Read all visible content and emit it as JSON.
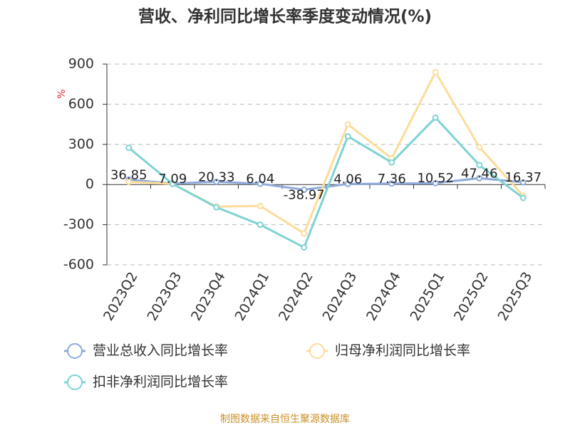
{
  "chart_data": {
    "type": "line",
    "title": "营收、净利同比增长率季度变动情况(%)",
    "y_label": "%",
    "categories": [
      "2023Q2",
      "2023Q3",
      "2023Q4",
      "2024Q1",
      "2024Q2",
      "2024Q3",
      "2024Q4",
      "2025Q1",
      "2025Q2",
      "2025Q3"
    ],
    "series": [
      {
        "name": "营业总收入同比增长率",
        "color": "#8eaadb",
        "values": [
          36.85,
          7.09,
          20.33,
          6.04,
          -38.97,
          4.06,
          7.36,
          10.52,
          47.46,
          16.37
        ],
        "show_labels": true
      },
      {
        "name": "归母净利润同比增长率",
        "color": "#fddc9a",
        "values": [
          20,
          5,
          -165,
          -160,
          -365,
          450,
          195,
          840,
          280,
          -85
        ]
      },
      {
        "name": "扣非净利润同比增长率",
        "color": "#7fd3d3",
        "values": [
          275,
          5,
          -170,
          -300,
          -470,
          360,
          165,
          500,
          145,
          -100
        ]
      }
    ],
    "ylim": [
      -600,
      900
    ],
    "yticks": [
      -600,
      -300,
      0,
      300,
      600,
      900
    ],
    "grid": true,
    "source": "制图数据来自恒生聚源数据库"
  }
}
